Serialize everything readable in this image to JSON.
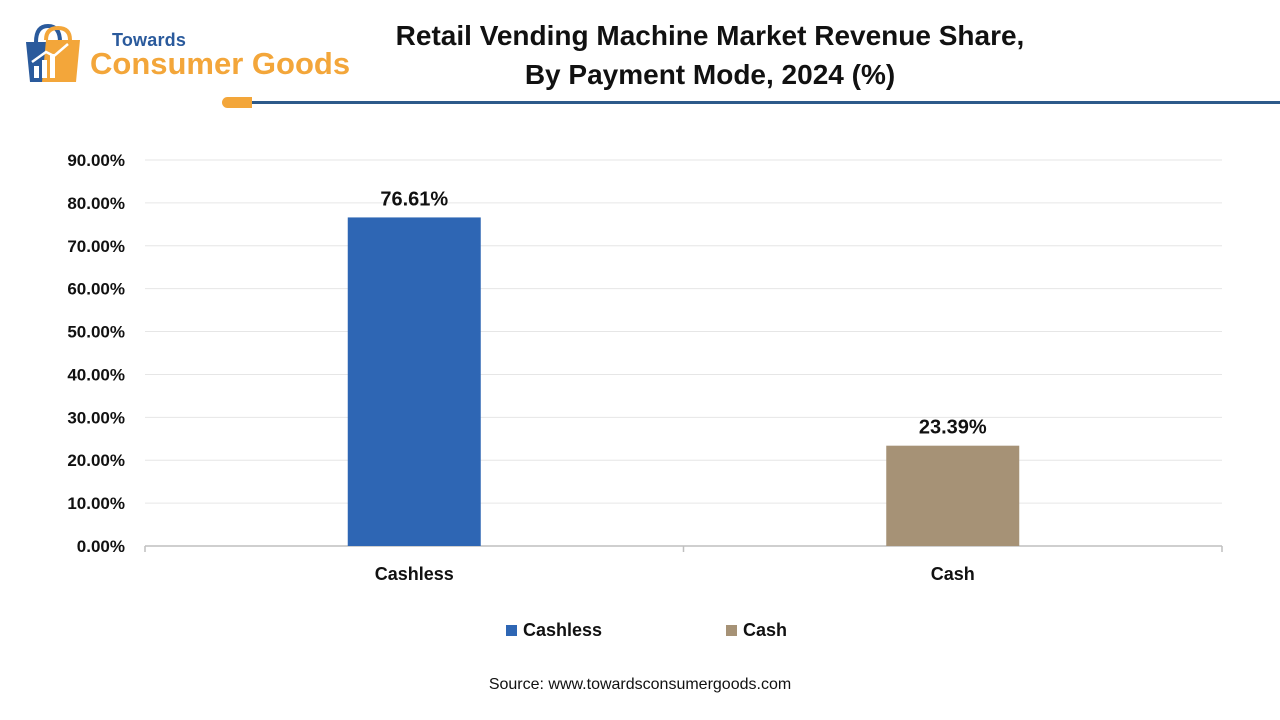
{
  "brand": {
    "line1": "Towards",
    "line2": "Consumer Goods",
    "logo_icon": "shopping-bag-chart-icon"
  },
  "header": {
    "title_line1": "Retail Vending Machine Market Revenue Share,",
    "title_line2": "By Payment Mode, 2024 (%)"
  },
  "colors": {
    "cashless": "#2e66b4",
    "cash": "#a69276",
    "accent_orange": "#f3a63a",
    "accent_blue": "#2d5a8a",
    "grid": "#e6e6e6",
    "axis": "#bfbfbf"
  },
  "chart_data": {
    "type": "bar",
    "title": "Retail Vending Machine Market Revenue Share, By Payment Mode, 2024 (%)",
    "categories": [
      "Cashless",
      "Cash"
    ],
    "values": [
      76.61,
      23.39
    ],
    "value_labels": [
      "76.61%",
      "23.39%"
    ],
    "yticks": [
      "0.00%",
      "10.00%",
      "20.00%",
      "30.00%",
      "40.00%",
      "50.00%",
      "60.00%",
      "70.00%",
      "80.00%",
      "90.00%"
    ],
    "ylim": [
      0,
      90
    ],
    "xlabel": "",
    "ylabel": "",
    "grid": true,
    "legend_position": "bottom-center",
    "legend": [
      "Cashless",
      "Cash"
    ]
  },
  "footer": {
    "source": "Source: www.towardsconsumergoods.com"
  }
}
